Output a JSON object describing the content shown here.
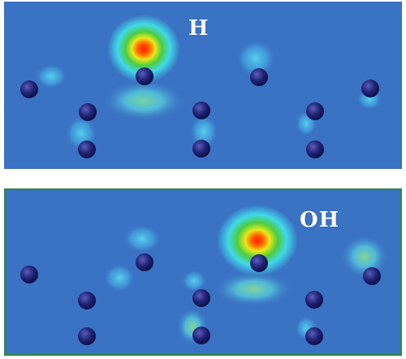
{
  "panels": {
    "top": {
      "label": "H"
    },
    "bottom": {
      "label": "OH"
    }
  },
  "colors": {
    "background": "#3a72c4",
    "atom": "#1c1f6e",
    "frame_bottom": "#2e8b3a"
  }
}
